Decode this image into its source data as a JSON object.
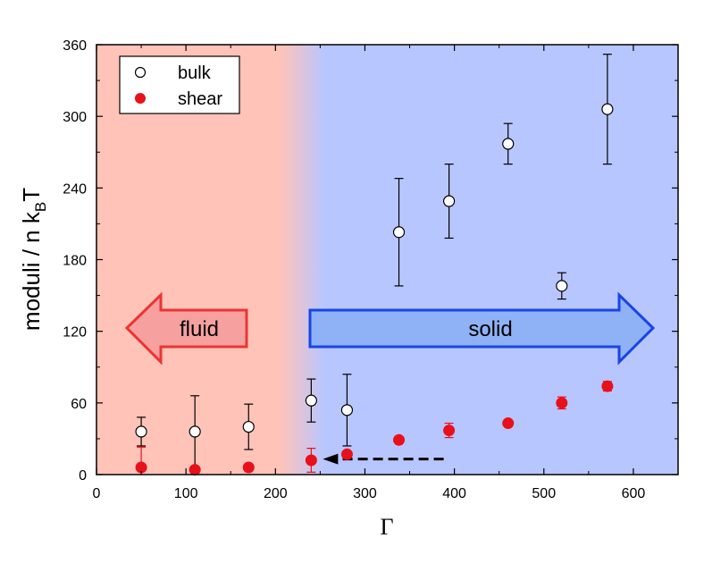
{
  "chart_data": {
    "type": "scatter",
    "xlabel": "Γ",
    "ylabel": {
      "main": "moduli / n k",
      "sub": "B",
      "tail": "T"
    },
    "xlim": [
      0,
      650
    ],
    "ylim": [
      0,
      360
    ],
    "xticks": [
      0,
      100,
      200,
      300,
      400,
      500,
      600
    ],
    "yticks": [
      0,
      60,
      120,
      180,
      240,
      300,
      360
    ],
    "grid": false,
    "legend_position": "top-left",
    "series": [
      {
        "name": "bulk",
        "marker": "open-circle",
        "color": "#000000",
        "points": [
          {
            "x": 50,
            "y": 36,
            "err": 12
          },
          {
            "x": 110,
            "y": 36,
            "err": 30
          },
          {
            "x": 170,
            "y": 40,
            "err": 19
          },
          {
            "x": 240,
            "y": 62,
            "err": 18
          },
          {
            "x": 280,
            "y": 54,
            "err": 30
          },
          {
            "x": 338,
            "y": 203,
            "err": 45
          },
          {
            "x": 394,
            "y": 229,
            "err": 31
          },
          {
            "x": 460,
            "y": 277,
            "err": 17
          },
          {
            "x": 520,
            "y": 158,
            "err": 11
          },
          {
            "x": 571,
            "y": 306,
            "err": 46
          }
        ]
      },
      {
        "name": "shear",
        "marker": "filled-circle",
        "color": "#e8101a",
        "points": [
          {
            "x": 50,
            "y": 6,
            "err": 17
          },
          {
            "x": 110,
            "y": 4,
            "err": 0
          },
          {
            "x": 170,
            "y": 6,
            "err": 0
          },
          {
            "x": 240,
            "y": 12,
            "err": 10
          },
          {
            "x": 280,
            "y": 17,
            "err": 0
          },
          {
            "x": 338,
            "y": 29,
            "err": 0
          },
          {
            "x": 394,
            "y": 37,
            "err": 6
          },
          {
            "x": 460,
            "y": 43,
            "err": 0
          },
          {
            "x": 520,
            "y": 60,
            "err": 5
          },
          {
            "x": 571,
            "y": 74,
            "err": 4
          }
        ]
      }
    ],
    "regions": {
      "fluid_color": "#ffc3b8",
      "solid_color": "#b8c6ff",
      "transition_x": [
        205,
        255
      ]
    },
    "annotations": {
      "fluid_label": "fluid",
      "solid_label": "solid",
      "fluid_arrow_color": "#ee3333",
      "fluid_arrow_fill": "#f7a0a0",
      "solid_arrow_color": "#1a44e8",
      "solid_arrow_fill": "#8eb2f5",
      "dashed_arrow": {
        "x_from": 388,
        "x_to": 253,
        "y": 13
      }
    }
  }
}
